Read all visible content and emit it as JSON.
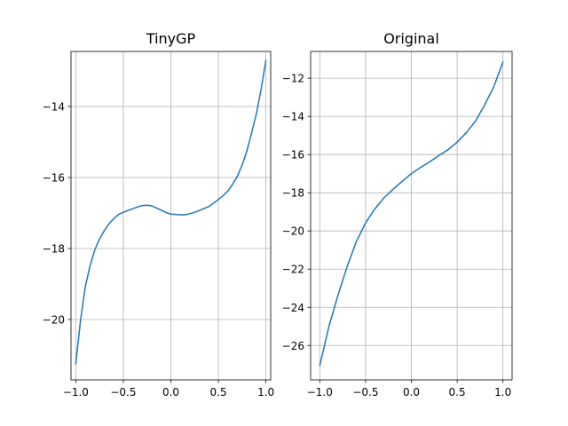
{
  "chart_data": [
    {
      "type": "line",
      "title": "TinyGP",
      "xlabel": "",
      "ylabel": "",
      "xlim": [
        -1.05,
        1.05
      ],
      "ylim": [
        -21.7,
        -12.45
      ],
      "xticks": [
        -1.0,
        -0.5,
        0.0,
        0.5,
        1.0
      ],
      "xtick_labels": [
        "−1.0",
        "−0.5",
        "0.0",
        "0.5",
        "1.0"
      ],
      "yticks": [
        -20,
        -18,
        -16,
        -14
      ],
      "ytick_labels": [
        "−20",
        "−18",
        "−16",
        "−14"
      ],
      "grid": true,
      "series": [
        {
          "color": "#1f77b4",
          "x": [
            -1.0,
            -0.95,
            -0.9,
            -0.85,
            -0.8,
            -0.75,
            -0.7,
            -0.65,
            -0.6,
            -0.55,
            -0.5,
            -0.45,
            -0.4,
            -0.35,
            -0.3,
            -0.25,
            -0.2,
            -0.15,
            -0.1,
            -0.05,
            0.0,
            0.05,
            0.1,
            0.15,
            0.2,
            0.25,
            0.3,
            0.35,
            0.4,
            0.45,
            0.5,
            0.55,
            0.6,
            0.65,
            0.7,
            0.75,
            0.8,
            0.85,
            0.9,
            0.95,
            1.0
          ],
          "y": [
            -21.25,
            -20.03,
            -19.08,
            -18.49,
            -18.04,
            -17.73,
            -17.5,
            -17.3,
            -17.16,
            -17.04,
            -16.98,
            -16.93,
            -16.88,
            -16.83,
            -16.79,
            -16.78,
            -16.8,
            -16.86,
            -16.92,
            -16.99,
            -17.03,
            -17.04,
            -17.05,
            -17.05,
            -17.02,
            -16.98,
            -16.93,
            -16.87,
            -16.82,
            -16.72,
            -16.62,
            -16.51,
            -16.38,
            -16.19,
            -15.96,
            -15.65,
            -15.25,
            -14.74,
            -14.2,
            -13.5,
            -12.7
          ]
        }
      ]
    },
    {
      "type": "line",
      "title": "Original",
      "xlabel": "",
      "ylabel": "",
      "xlim": [
        -1.1,
        1.1
      ],
      "ylim": [
        -27.8,
        -10.6
      ],
      "xticks": [
        -1.0,
        -0.5,
        0.0,
        0.5,
        1.0
      ],
      "xtick_labels": [
        "−1.0",
        "−0.5",
        "0.0",
        "0.5",
        "1.0"
      ],
      "yticks": [
        -26,
        -24,
        -22,
        -20,
        -18,
        -16,
        -14,
        -12
      ],
      "ytick_labels": [
        "−26",
        "−24",
        "−22",
        "−20",
        "−18",
        "−16",
        "−14",
        "−12"
      ],
      "grid": true,
      "series": [
        {
          "color": "#1f77b4",
          "x": [
            -1.0,
            -0.9,
            -0.8,
            -0.7,
            -0.6,
            -0.5,
            -0.4,
            -0.3,
            -0.2,
            -0.1,
            0.0,
            0.1,
            0.2,
            0.3,
            0.4,
            0.5,
            0.6,
            0.7,
            0.8,
            0.9,
            1.0
          ],
          "y": [
            -27.05,
            -25.0,
            -23.35,
            -21.85,
            -20.55,
            -19.58,
            -18.85,
            -18.27,
            -17.82,
            -17.4,
            -17.0,
            -16.68,
            -16.38,
            -16.05,
            -15.75,
            -15.35,
            -14.85,
            -14.25,
            -13.4,
            -12.45,
            -11.15
          ]
        }
      ]
    }
  ]
}
